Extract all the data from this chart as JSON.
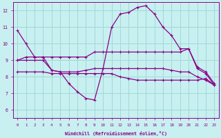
{
  "xlabel": "Windchill (Refroidissement éolien,°C)",
  "bg_color": "#c8f0f0",
  "grid_color": "#a0d8d8",
  "line_color": "#880088",
  "xlim": [
    -0.5,
    23.5
  ],
  "ylim": [
    5.5,
    12.5
  ],
  "xticks": [
    0,
    1,
    2,
    3,
    4,
    5,
    6,
    7,
    8,
    9,
    10,
    11,
    12,
    13,
    14,
    15,
    16,
    17,
    18,
    19,
    20,
    21,
    22,
    23
  ],
  "yticks": [
    6,
    7,
    8,
    9,
    10,
    11,
    12
  ],
  "curves": [
    {
      "x": [
        0,
        1,
        2,
        3,
        4,
        5,
        6,
        7,
        8,
        9,
        10,
        11,
        12,
        13,
        14,
        15,
        16,
        17,
        18,
        19,
        20,
        21,
        22,
        23
      ],
      "y": [
        10.8,
        10.0,
        9.2,
        9.2,
        8.4,
        8.3,
        7.6,
        7.1,
        6.7,
        6.6,
        8.5,
        11.0,
        11.8,
        11.9,
        12.2,
        12.3,
        11.8,
        11.0,
        10.5,
        9.7,
        9.7,
        8.5,
        8.2,
        7.5
      ]
    },
    {
      "x": [
        0,
        1,
        2,
        3,
        4,
        5,
        6,
        7,
        8,
        9,
        10,
        11,
        12,
        13,
        14,
        15,
        16,
        17,
        18,
        19,
        20,
        21,
        22,
        23
      ],
      "y": [
        9.0,
        9.2,
        9.2,
        9.2,
        9.2,
        9.2,
        9.2,
        9.2,
        9.2,
        9.5,
        9.5,
        9.5,
        9.5,
        9.5,
        9.5,
        9.5,
        9.5,
        9.5,
        9.5,
        9.5,
        9.7,
        8.6,
        8.3,
        7.6
      ]
    },
    {
      "x": [
        0,
        1,
        2,
        3,
        4,
        5,
        6,
        7,
        8,
        9,
        10,
        11,
        12,
        13,
        14,
        15,
        16,
        17,
        18,
        19,
        20,
        21,
        22,
        23
      ],
      "y": [
        9.0,
        9.0,
        9.0,
        9.0,
        8.4,
        8.3,
        8.3,
        8.3,
        8.4,
        8.5,
        8.5,
        8.5,
        8.5,
        8.5,
        8.5,
        8.5,
        8.5,
        8.5,
        8.4,
        8.3,
        8.3,
        8.0,
        7.8,
        7.5
      ]
    },
    {
      "x": [
        0,
        1,
        2,
        3,
        4,
        5,
        6,
        7,
        8,
        9,
        10,
        11,
        12,
        13,
        14,
        15,
        16,
        17,
        18,
        19,
        20,
        21,
        22,
        23
      ],
      "y": [
        8.3,
        8.3,
        8.3,
        8.3,
        8.2,
        8.2,
        8.2,
        8.2,
        8.2,
        8.2,
        8.2,
        8.2,
        8.0,
        7.9,
        7.8,
        7.8,
        7.8,
        7.8,
        7.8,
        7.8,
        7.8,
        7.8,
        7.9,
        7.5
      ]
    }
  ]
}
